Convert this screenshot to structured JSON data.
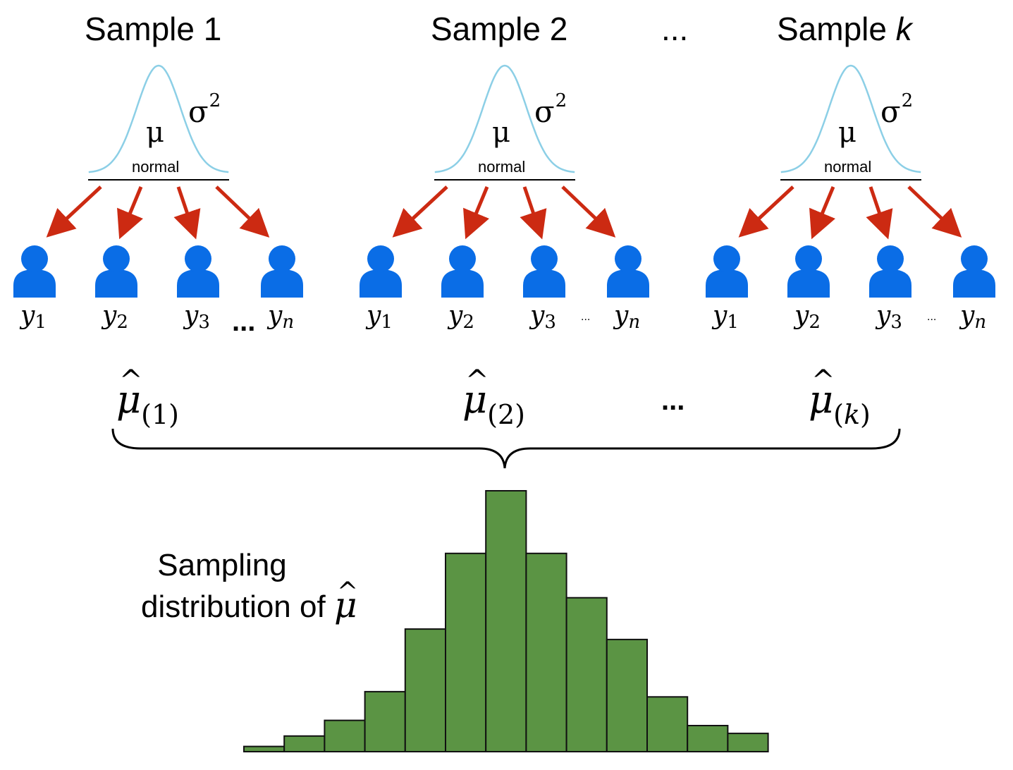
{
  "samples": [
    {
      "title_prefix": "Sample ",
      "title_index": "1",
      "index_italic": false,
      "param_mean": "μ",
      "param_variance": "σ",
      "param_variance_exp": "2",
      "distribution": "normal",
      "observations": [
        {
          "var": "y",
          "sub": "1"
        },
        {
          "var": "y",
          "sub": "2"
        },
        {
          "var": "y",
          "sub": "3"
        },
        {
          "var": "y",
          "sub": "n"
        }
      ],
      "obs_ellipsis": "...",
      "estimate": {
        "symbol": "μ",
        "hat": "^",
        "sub": "1"
      }
    },
    {
      "title_prefix": "Sample ",
      "title_index": "2",
      "index_italic": false,
      "param_mean": "μ",
      "param_variance": "σ",
      "param_variance_exp": "2",
      "distribution": "normal",
      "observations": [
        {
          "var": "y",
          "sub": "1"
        },
        {
          "var": "y",
          "sub": "2"
        },
        {
          "var": "y",
          "sub": "3"
        },
        {
          "var": "y",
          "sub": "n"
        }
      ],
      "obs_ellipsis": "...",
      "estimate": {
        "symbol": "μ",
        "hat": "^",
        "sub": "2"
      }
    },
    {
      "title_prefix": "Sample ",
      "title_index": "k",
      "index_italic": true,
      "param_mean": "μ",
      "param_variance": "σ",
      "param_variance_exp": "2",
      "distribution": "normal",
      "observations": [
        {
          "var": "y",
          "sub": "1"
        },
        {
          "var": "y",
          "sub": "2"
        },
        {
          "var": "y",
          "sub": "3"
        },
        {
          "var": "y",
          "sub": "n"
        }
      ],
      "obs_ellipsis": "...",
      "estimate": {
        "symbol": "μ",
        "hat": "^",
        "sub": "k"
      }
    }
  ],
  "samples_ellipsis": "...",
  "estimates_ellipsis": "...",
  "caption": {
    "line1": "Sampling",
    "line2": "distribution of ",
    "symbol": "μ",
    "hat": "^"
  },
  "histogram": {
    "relative_heights": [
      0.02,
      0.06,
      0.12,
      0.23,
      0.47,
      0.76,
      1.0,
      0.76,
      0.59,
      0.43,
      0.21,
      0.1,
      0.07
    ]
  },
  "colors": {
    "curve": "#8ccfe6",
    "arrow": "#cc2a12",
    "person": "#0a6de6",
    "bar_fill": "#5b9444",
    "bar_stroke": "#111111"
  }
}
